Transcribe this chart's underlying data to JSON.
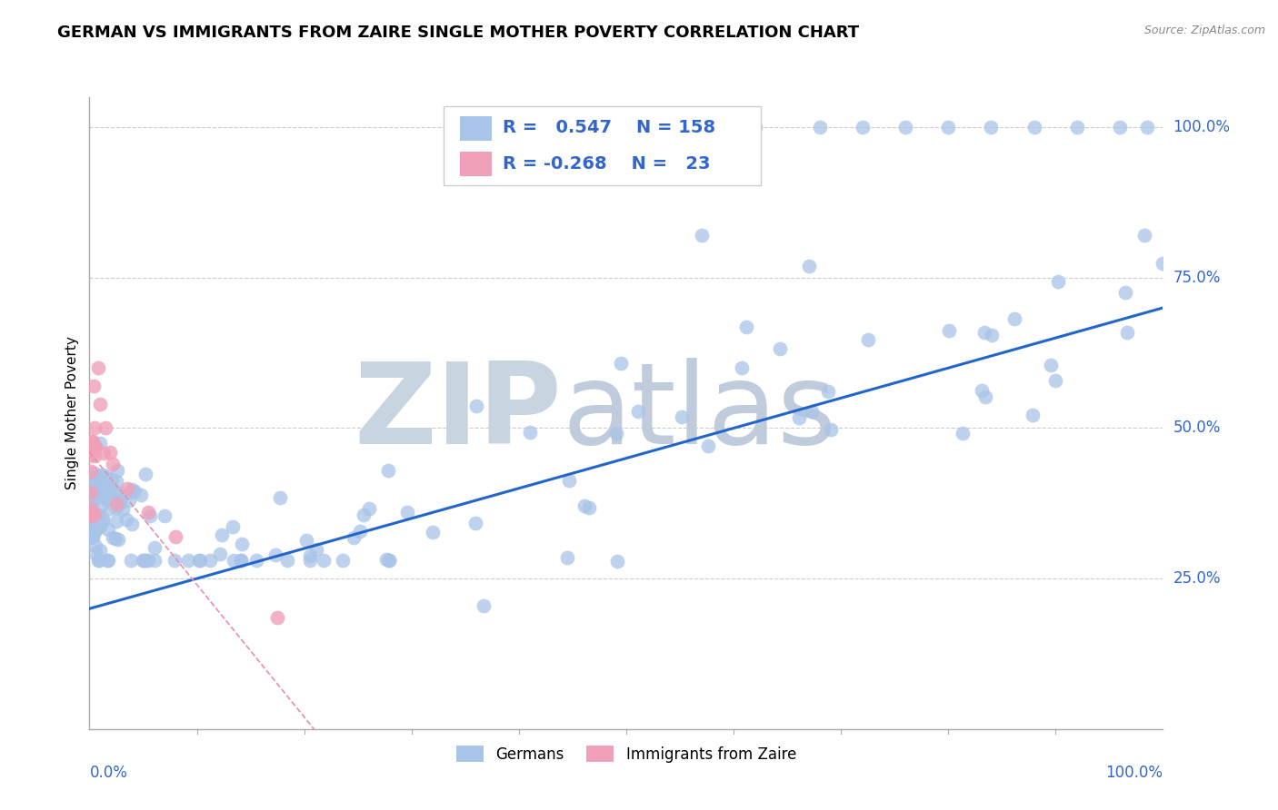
{
  "title": "GERMAN VS IMMIGRANTS FROM ZAIRE SINGLE MOTHER POVERTY CORRELATION CHART",
  "source": "Source: ZipAtlas.com",
  "ylabel": "Single Mother Poverty",
  "r_blue": 0.547,
  "n_blue": 158,
  "r_pink": -0.268,
  "n_pink": 23,
  "y_tick_labels": [
    "25.0%",
    "50.0%",
    "75.0%",
    "100.0%"
  ],
  "y_tick_values": [
    0.25,
    0.5,
    0.75,
    1.0
  ],
  "x_min": 0.0,
  "x_max": 1.0,
  "y_min": 0.0,
  "y_max": 1.05,
  "blue_scatter_color": "#a8c4e8",
  "pink_scatter_color": "#f0a0b8",
  "blue_line_color": "#2266cc",
  "pink_line_color": "#e890a8",
  "grid_color": "#c8c8c8",
  "blue_intercept": 0.2,
  "blue_slope": 0.5,
  "pink_intercept": 0.46,
  "pink_slope": -2.2,
  "legend_labels": [
    "Germans",
    "Immigrants from Zaire"
  ],
  "title_fontsize": 13,
  "tick_color": "#3366cc",
  "tick_fontsize": 12,
  "source_color": "#888888",
  "watermark_zip_color": "#c8d4e0",
  "watermark_atlas_color": "#c0ccdb"
}
